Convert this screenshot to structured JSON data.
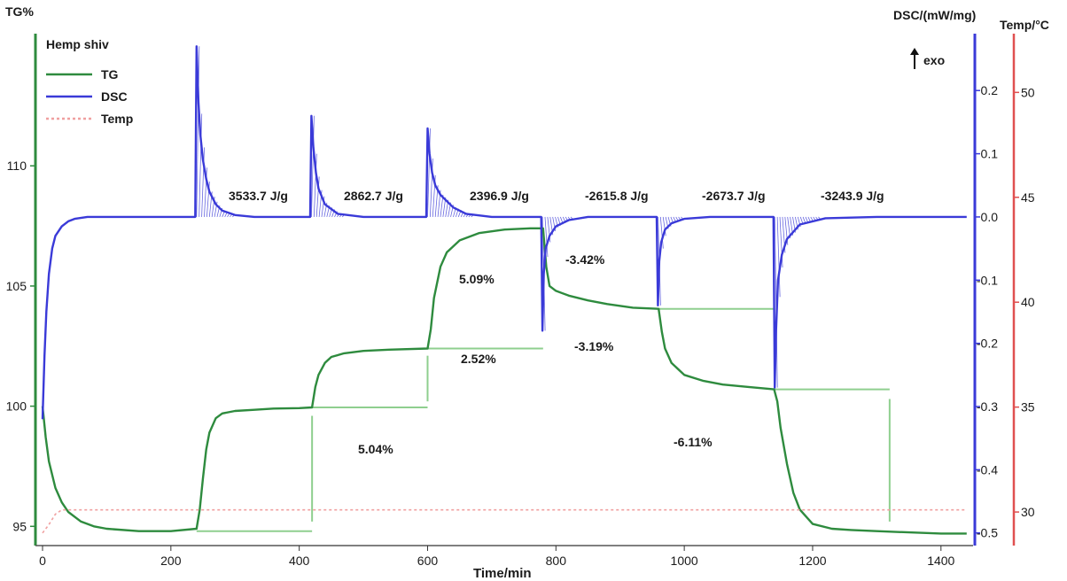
{
  "chart_data": {
    "type": "line",
    "title": "Hemp shiv",
    "xlabel": "Time/min",
    "left_axis_label": "TG%",
    "right_axis1_label": "DSC/(mW/mg)",
    "right_axis2_label": "Temp/°C",
    "exo_label": "exo",
    "xlim": [
      -5,
      1445
    ],
    "tg_ylim": [
      94.2,
      115.5
    ],
    "dsc_ylim": [
      -0.52,
      0.29
    ],
    "temp_ylim": [
      28.4,
      52.8
    ],
    "x_ticks": [
      0,
      200,
      400,
      600,
      800,
      1000,
      1200,
      1400
    ],
    "tg_ticks": [
      95,
      100,
      105,
      110
    ],
    "dsc_ticks": [
      0.2,
      0.1,
      0.0,
      -0.1,
      -0.2,
      -0.3,
      -0.4,
      -0.5
    ],
    "temp_ticks": [
      50,
      45,
      40,
      35,
      30
    ],
    "legend": [
      {
        "name": "TG",
        "color": "#2e8b3e"
      },
      {
        "name": "DSC",
        "color": "#3a3ad8"
      },
      {
        "name": "Temp",
        "color": "#f0a0a0"
      }
    ],
    "series": [
      {
        "name": "TG",
        "axis": "TG%",
        "color": "#2e8b3e",
        "x": [
          0,
          5,
          10,
          20,
          30,
          40,
          60,
          80,
          100,
          150,
          200,
          240,
          245,
          250,
          255,
          260,
          270,
          280,
          300,
          330,
          360,
          400,
          420,
          425,
          430,
          440,
          450,
          470,
          500,
          540,
          600,
          605,
          610,
          620,
          630,
          650,
          680,
          720,
          760,
          780,
          785,
          790,
          800,
          820,
          850,
          880,
          920,
          960,
          965,
          970,
          980,
          1000,
          1030,
          1060,
          1100,
          1140,
          1145,
          1150,
          1160,
          1170,
          1180,
          1200,
          1230,
          1260,
          1300,
          1350,
          1400,
          1440
        ],
        "values": [
          100.0,
          98.7,
          97.7,
          96.6,
          96.0,
          95.6,
          95.2,
          95.0,
          94.9,
          94.8,
          94.8,
          94.9,
          95.7,
          97.0,
          98.2,
          98.9,
          99.5,
          99.7,
          99.8,
          99.85,
          99.9,
          99.92,
          99.95,
          100.8,
          101.3,
          101.8,
          102.05,
          102.2,
          102.3,
          102.35,
          102.4,
          103.2,
          104.5,
          105.8,
          106.4,
          106.9,
          107.2,
          107.35,
          107.4,
          107.4,
          105.8,
          105.0,
          104.8,
          104.6,
          104.4,
          104.25,
          104.1,
          104.05,
          103.1,
          102.4,
          101.8,
          101.3,
          101.05,
          100.9,
          100.8,
          100.7,
          100.2,
          99.1,
          97.6,
          96.4,
          95.7,
          95.1,
          94.9,
          94.85,
          94.8,
          94.75,
          94.7,
          94.7
        ]
      },
      {
        "name": "DSC",
        "axis": "DSC/(mW/mg)",
        "color": "#3a3ad8",
        "x": [
          0,
          3,
          6,
          10,
          15,
          20,
          30,
          40,
          50,
          70,
          100,
          150,
          200,
          238,
          240,
          243,
          246,
          250,
          255,
          260,
          270,
          280,
          300,
          330,
          360,
          400,
          417,
          419,
          422,
          426,
          430,
          440,
          460,
          500,
          540,
          598,
          600,
          603,
          607,
          612,
          620,
          640,
          660,
          700,
          740,
          777,
          779,
          781,
          784,
          790,
          800,
          820,
          850,
          900,
          957,
          959,
          961,
          964,
          970,
          980,
          1000,
          1040,
          1100,
          1139,
          1141,
          1143,
          1146,
          1152,
          1160,
          1180,
          1220,
          1300,
          1360,
          1440
        ],
        "values": [
          -0.32,
          -0.22,
          -0.15,
          -0.09,
          -0.05,
          -0.03,
          -0.015,
          -0.007,
          -0.003,
          0.0,
          0.0,
          0.0,
          0.0,
          0.0,
          0.27,
          0.18,
          0.13,
          0.09,
          0.06,
          0.04,
          0.02,
          0.01,
          0.003,
          0.0,
          0.0,
          0.0,
          0.0,
          0.16,
          0.11,
          0.07,
          0.045,
          0.02,
          0.005,
          0.0,
          0.0,
          0.0,
          0.14,
          0.1,
          0.07,
          0.05,
          0.035,
          0.015,
          0.005,
          0.0,
          0.0,
          0.0,
          -0.18,
          -0.09,
          -0.05,
          -0.03,
          -0.015,
          -0.005,
          0.0,
          0.0,
          0.0,
          -0.14,
          -0.07,
          -0.04,
          -0.02,
          -0.01,
          -0.003,
          0.0,
          0.0,
          0.0,
          -0.27,
          -0.18,
          -0.1,
          -0.06,
          -0.035,
          -0.012,
          -0.002,
          0.0,
          0.0,
          0.0
        ]
      },
      {
        "name": "Temp",
        "axis": "Temp/°C",
        "color": "#f0a0a0",
        "x": [
          0,
          10,
          20,
          30,
          50,
          100,
          200,
          400,
          600,
          800,
          1000,
          1200,
          1440
        ],
        "values": [
          29.0,
          29.4,
          29.9,
          30.1,
          30.1,
          30.1,
          30.1,
          30.1,
          30.1,
          30.1,
          30.1,
          30.1,
          30.1
        ]
      }
    ],
    "annotations": {
      "enthalpies": [
        "3533.7 J/g",
        "2862.7 J/g",
        "2396.9 J/g",
        "-2615.8 J/g",
        "-2673.7 J/g",
        "-3243.9 J/g"
      ],
      "mass_changes": [
        "5.04%",
        "2.52%",
        "5.09%",
        "-3.42%",
        "-3.19%",
        "-6.11%"
      ]
    }
  }
}
